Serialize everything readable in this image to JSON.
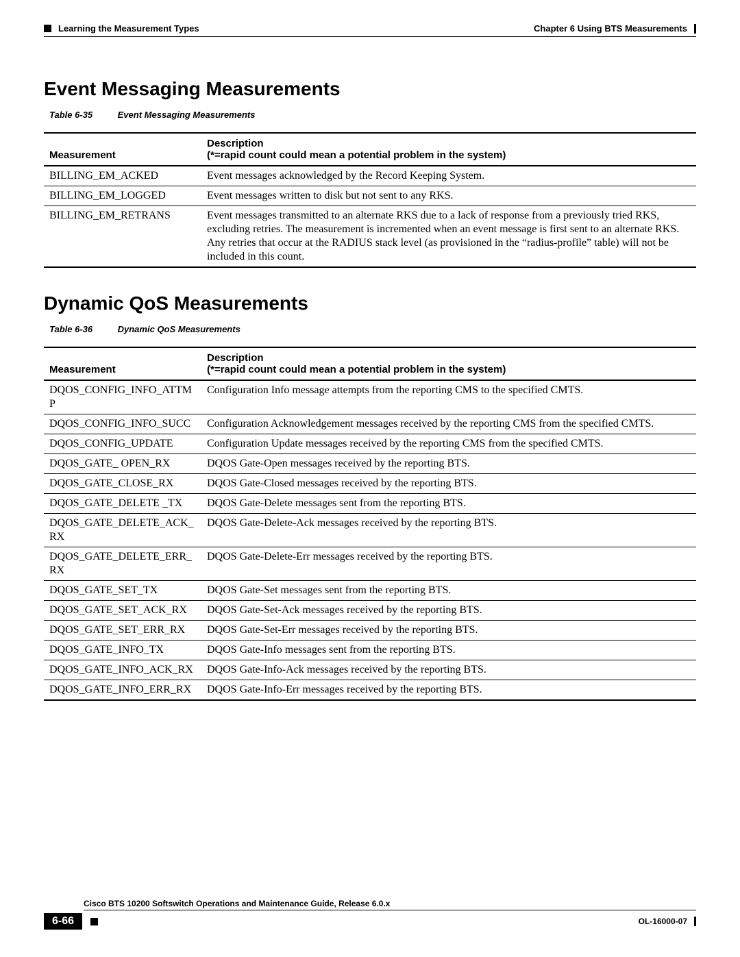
{
  "header": {
    "left": "Learning the Measurement Types",
    "right": "Chapter 6    Using BTS Measurements"
  },
  "sections": [
    {
      "title": "Event Messaging Measurements",
      "caption_num": "Table 6-35",
      "caption_text": "Event Messaging Measurements",
      "head_measurement": "Measurement",
      "head_desc_line1": "Description",
      "head_desc_line2": "(*=rapid count could mean a potential problem in the system)",
      "rows": [
        {
          "m": "BILLING_EM_ACKED",
          "d": "Event messages acknowledged by the Record Keeping System."
        },
        {
          "m": "BILLING_EM_LOGGED",
          "d": "Event messages written to disk but not sent to any RKS."
        },
        {
          "m": "BILLING_EM_RETRANS",
          "d": "Event messages transmitted to an alternate RKS due to a lack of response from a previously tried RKS, excluding retries. The measurement is incremented when an event message is first sent to an alternate RKS. Any retries that occur at the RADIUS stack level (as provisioned in the “radius-profile” table) will not be included in this count."
        }
      ]
    },
    {
      "title": "Dynamic QoS Measurements",
      "caption_num": "Table 6-36",
      "caption_text": "Dynamic QoS Measurements",
      "head_measurement": "Measurement",
      "head_desc_line1": "Description",
      "head_desc_line2": "(*=rapid count could mean a potential problem in the system)",
      "rows": [
        {
          "m": "DQOS_CONFIG_INFO_ATTMP",
          "d": "Configuration Info message attempts from the reporting CMS to the specified CMTS."
        },
        {
          "m": "DQOS_CONFIG_INFO_SUCC",
          "d": "Configuration Acknowledgement messages received by the reporting CMS from the specified CMTS."
        },
        {
          "m": "DQOS_CONFIG_UPDATE",
          "d": "Configuration Update messages received by the reporting CMS from the specified CMTS."
        },
        {
          "m": "DQOS_GATE_ OPEN_RX",
          "d": "DQOS Gate-Open messages received by the reporting BTS."
        },
        {
          "m": "DQOS_GATE_CLOSE_RX",
          "d": "DQOS Gate-Closed messages received by the reporting BTS."
        },
        {
          "m": "DQOS_GATE_DELETE _TX",
          "d": "DQOS Gate-Delete messages sent from the reporting BTS."
        },
        {
          "m": "DQOS_GATE_DELETE_ACK_RX",
          "d": "DQOS Gate-Delete-Ack messages received by the reporting BTS."
        },
        {
          "m": "DQOS_GATE_DELETE_ERR_RX",
          "d": "DQOS Gate-Delete-Err messages received by the reporting BTS."
        },
        {
          "m": "DQOS_GATE_SET_TX",
          "d": "DQOS Gate-Set messages sent from the reporting BTS."
        },
        {
          "m": "DQOS_GATE_SET_ACK_RX",
          "d": "DQOS Gate-Set-Ack messages received by the reporting BTS."
        },
        {
          "m": "DQOS_GATE_SET_ERR_RX",
          "d": "DQOS Gate-Set-Err messages received by the reporting BTS."
        },
        {
          "m": "DQOS_GATE_INFO_TX",
          "d": "DQOS Gate-Info messages sent from the reporting BTS."
        },
        {
          "m": "DQOS_GATE_INFO_ACK_RX",
          "d": "DQOS Gate-Info-Ack messages received by the reporting BTS."
        },
        {
          "m": "DQOS_GATE_INFO_ERR_RX",
          "d": "DQOS Gate-Info-Err messages received by the reporting BTS."
        }
      ]
    }
  ],
  "footer": {
    "book_title": "Cisco BTS 10200 Softswitch Operations and Maintenance Guide, Release 6.0.x",
    "page_num": "6-66",
    "doc_id": "OL-16000-07"
  }
}
